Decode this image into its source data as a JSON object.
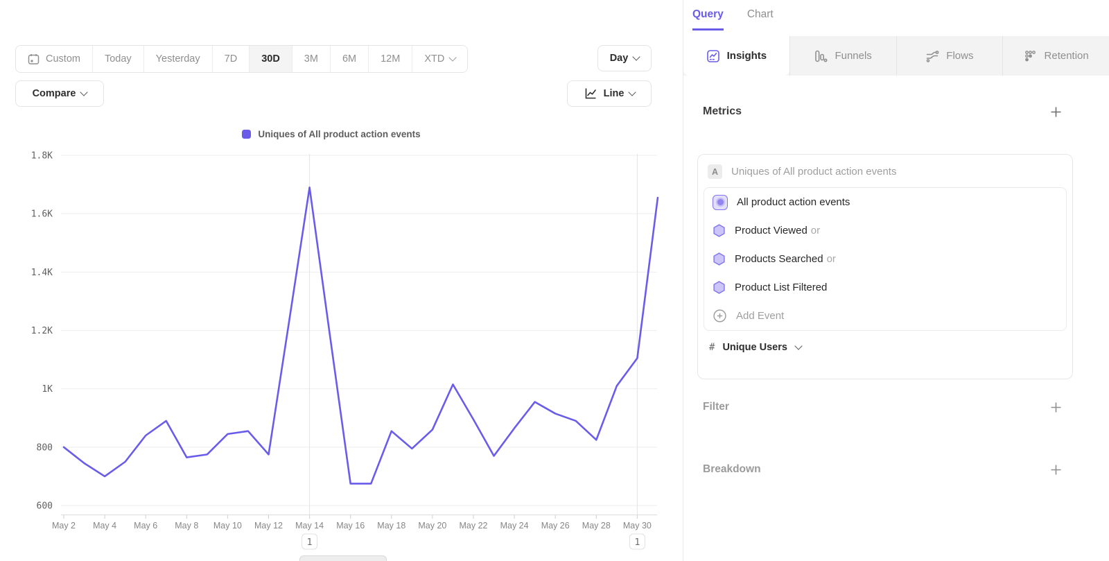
{
  "toolbar": {
    "ranges": [
      {
        "label": "Custom"
      },
      {
        "label": "Today"
      },
      {
        "label": "Yesterday"
      },
      {
        "label": "7D"
      },
      {
        "label": "30D"
      },
      {
        "label": "3M"
      },
      {
        "label": "6M"
      },
      {
        "label": "12M"
      },
      {
        "label": "XTD"
      }
    ],
    "granularity_label": "Day",
    "compare_label": "Compare",
    "chart_type_label": "Line"
  },
  "panel": {
    "top_tabs": [
      {
        "label": "Query"
      },
      {
        "label": "Chart"
      }
    ],
    "view_tabs": [
      {
        "label": "Insights"
      },
      {
        "label": "Funnels"
      },
      {
        "label": "Flows"
      },
      {
        "label": "Retention"
      }
    ],
    "metrics": {
      "title": "Metrics",
      "series_badge": "A",
      "series_title": "Uniques of All product action events",
      "events": [
        {
          "label": "All product action events",
          "suffix": ""
        },
        {
          "label": "Product Viewed",
          "suffix": "or"
        },
        {
          "label": "Products Searched",
          "suffix": "or"
        },
        {
          "label": "Product List Filtered",
          "suffix": ""
        }
      ],
      "add_event_label": "Add Event",
      "measurement": {
        "prefix": "#",
        "label": "Unique Users"
      }
    },
    "sections": [
      {
        "title": "Filter"
      },
      {
        "title": "Breakdown"
      }
    ]
  },
  "colors": {
    "accent": "#6A5CE8",
    "line": "#6A5CEA",
    "grid": "#eeeeee",
    "annotation_line": "#e3e3e3"
  },
  "chart_data": {
    "type": "line",
    "title": "",
    "legend": [
      {
        "label": "Uniques of All product action events",
        "color": "#6A5CE8"
      }
    ],
    "x": [
      "May 2",
      "May 3",
      "May 4",
      "May 5",
      "May 6",
      "May 7",
      "May 8",
      "May 9",
      "May 10",
      "May 11",
      "May 12",
      "May 13",
      "May 14",
      "May 15",
      "May 16",
      "May 17",
      "May 18",
      "May 19",
      "May 20",
      "May 21",
      "May 22",
      "May 23",
      "May 24",
      "May 25",
      "May 26",
      "May 27",
      "May 28",
      "May 29",
      "May 30",
      "May 31"
    ],
    "series": [
      {
        "name": "Uniques of All product action events",
        "color": "#6A5CEA",
        "values": [
          800,
          745,
          700,
          750,
          840,
          890,
          765,
          775,
          845,
          855,
          775,
          1230,
          1690,
          1180,
          675,
          675,
          855,
          795,
          860,
          1015,
          895,
          770,
          865,
          955,
          915,
          890,
          825,
          1010,
          1105,
          1655
        ]
      }
    ],
    "ylim": [
      600,
      1800
    ],
    "ytick_values": [
      600,
      800,
      1000,
      1200,
      1400,
      1600,
      1800
    ],
    "ytick_labels": [
      "600",
      "800",
      "1K",
      "1.2K",
      "1.4K",
      "1.6K",
      "1.8K"
    ],
    "xtick_labels": [
      "May 2",
      "May 4",
      "May 6",
      "May 8",
      "May 10",
      "May 12",
      "May 14",
      "May 16",
      "May 18",
      "May 20",
      "May 22",
      "May 24",
      "May 26",
      "May 28",
      "May 30"
    ],
    "grid": true,
    "legend_position": "top",
    "annotations": [
      {
        "x": "May 14",
        "label": "1"
      },
      {
        "x": "May 30",
        "label": "1"
      }
    ]
  }
}
